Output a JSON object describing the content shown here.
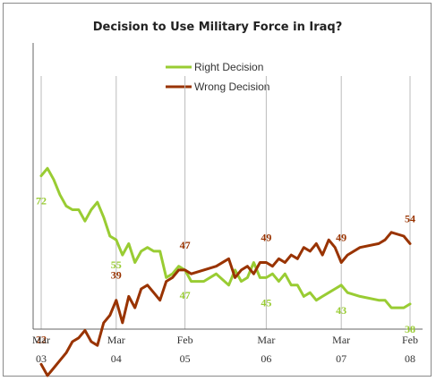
{
  "chart_data": {
    "type": "line",
    "title": "Decision to Use Military Force in Iraq?",
    "xlabel": "",
    "ylabel": "",
    "ylim": [
      0,
      100
    ],
    "grid": false,
    "legend_position": "top-center",
    "x_ticks": [
      {
        "month": "Mar",
        "year": "03",
        "date": "2003-03"
      },
      {
        "month": "Mar",
        "year": "04",
        "date": "2004-03"
      },
      {
        "month": "Feb",
        "year": "05",
        "date": "2005-02"
      },
      {
        "month": "Mar",
        "year": "06",
        "date": "2006-03"
      },
      {
        "month": "Mar",
        "year": "07",
        "date": "2007-03"
      },
      {
        "month": "Feb",
        "year": "08",
        "date": "2008-02"
      }
    ],
    "series": [
      {
        "name": "Right Decision",
        "color": "#99cc33",
        "points": [
          [
            "2003-03",
            72
          ],
          [
            "2003-04",
            74
          ],
          [
            "2003-05",
            71
          ],
          [
            "2003-06",
            67
          ],
          [
            "2003-07",
            64
          ],
          [
            "2003-08",
            63
          ],
          [
            "2003-09",
            63
          ],
          [
            "2003-10",
            60
          ],
          [
            "2003-11",
            63
          ],
          [
            "2003-12",
            65
          ],
          [
            "2004-01",
            61
          ],
          [
            "2004-02",
            56
          ],
          [
            "2004-03",
            55
          ],
          [
            "2004-04",
            51
          ],
          [
            "2004-05",
            54
          ],
          [
            "2004-06",
            49
          ],
          [
            "2004-07",
            52
          ],
          [
            "2004-08",
            53
          ],
          [
            "2004-09",
            52
          ],
          [
            "2004-10",
            52
          ],
          [
            "2004-11",
            45
          ],
          [
            "2004-12",
            46
          ],
          [
            "2005-01",
            48
          ],
          [
            "2005-02",
            47
          ],
          [
            "2005-03",
            44
          ],
          [
            "2005-05",
            44
          ],
          [
            "2005-07",
            46
          ],
          [
            "2005-09",
            43
          ],
          [
            "2005-10",
            47
          ],
          [
            "2005-11",
            44
          ],
          [
            "2005-12",
            45
          ],
          [
            "2006-01",
            49
          ],
          [
            "2006-02",
            45
          ],
          [
            "2006-03",
            45
          ],
          [
            "2006-04",
            46
          ],
          [
            "2006-05",
            44
          ],
          [
            "2006-06",
            46
          ],
          [
            "2006-07",
            43
          ],
          [
            "2006-08",
            43
          ],
          [
            "2006-09",
            40
          ],
          [
            "2006-10",
            41
          ],
          [
            "2006-11",
            39
          ],
          [
            "2006-12",
            40
          ],
          [
            "2007-01",
            41
          ],
          [
            "2007-02",
            42
          ],
          [
            "2007-03",
            43
          ],
          [
            "2007-04",
            41
          ],
          [
            "2007-06",
            40
          ],
          [
            "2007-09",
            39
          ],
          [
            "2007-10",
            39
          ],
          [
            "2007-11",
            37
          ],
          [
            "2008-01",
            37
          ],
          [
            "2008-02",
            38
          ]
        ]
      },
      {
        "name": "Wrong Decision",
        "color": "#993300",
        "points": [
          [
            "2003-03",
            22
          ],
          [
            "2003-04",
            19
          ],
          [
            "2003-05",
            21
          ],
          [
            "2003-06",
            23
          ],
          [
            "2003-07",
            25
          ],
          [
            "2003-08",
            28
          ],
          [
            "2003-09",
            29
          ],
          [
            "2003-10",
            31
          ],
          [
            "2003-11",
            28
          ],
          [
            "2003-12",
            27
          ],
          [
            "2004-01",
            33
          ],
          [
            "2004-02",
            35
          ],
          [
            "2004-03",
            39
          ],
          [
            "2004-04",
            33
          ],
          [
            "2004-05",
            40
          ],
          [
            "2004-06",
            37
          ],
          [
            "2004-07",
            42
          ],
          [
            "2004-08",
            43
          ],
          [
            "2004-09",
            41
          ],
          [
            "2004-10",
            39
          ],
          [
            "2004-11",
            44
          ],
          [
            "2004-12",
            45
          ],
          [
            "2005-01",
            47
          ],
          [
            "2005-02",
            47
          ],
          [
            "2005-03",
            46
          ],
          [
            "2005-05",
            47
          ],
          [
            "2005-07",
            48
          ],
          [
            "2005-09",
            50
          ],
          [
            "2005-10",
            45
          ],
          [
            "2005-11",
            47
          ],
          [
            "2005-12",
            48
          ],
          [
            "2006-01",
            46
          ],
          [
            "2006-02",
            49
          ],
          [
            "2006-03",
            49
          ],
          [
            "2006-04",
            48
          ],
          [
            "2006-05",
            50
          ],
          [
            "2006-06",
            49
          ],
          [
            "2006-07",
            51
          ],
          [
            "2006-08",
            50
          ],
          [
            "2006-09",
            53
          ],
          [
            "2006-10",
            52
          ],
          [
            "2006-11",
            54
          ],
          [
            "2006-12",
            51
          ],
          [
            "2007-01",
            55
          ],
          [
            "2007-02",
            53
          ],
          [
            "2007-03",
            49
          ],
          [
            "2007-04",
            51
          ],
          [
            "2007-06",
            53
          ],
          [
            "2007-09",
            54
          ],
          [
            "2007-10",
            55
          ],
          [
            "2007-11",
            57
          ],
          [
            "2008-01",
            56
          ],
          [
            "2008-02",
            54
          ]
        ]
      }
    ],
    "data_labels": [
      {
        "series": "Right Decision",
        "date": "2003-03",
        "value": "72"
      },
      {
        "series": "Right Decision",
        "date": "2004-03",
        "value": "55"
      },
      {
        "series": "Right Decision",
        "date": "2005-02",
        "value": "47"
      },
      {
        "series": "Right Decision",
        "date": "2006-03",
        "value": "45"
      },
      {
        "series": "Right Decision",
        "date": "2007-03",
        "value": "43"
      },
      {
        "series": "Right Decision",
        "date": "2008-02",
        "value": "38"
      },
      {
        "series": "Wrong Decision",
        "date": "2003-03",
        "value": "22"
      },
      {
        "series": "Wrong Decision",
        "date": "2004-03",
        "value": "39"
      },
      {
        "series": "Wrong Decision",
        "date": "2005-02",
        "value": "47"
      },
      {
        "series": "Wrong Decision",
        "date": "2006-03",
        "value": "49"
      },
      {
        "series": "Wrong Decision",
        "date": "2007-03",
        "value": "49"
      },
      {
        "series": "Wrong Decision",
        "date": "2008-02",
        "value": "54"
      }
    ]
  }
}
